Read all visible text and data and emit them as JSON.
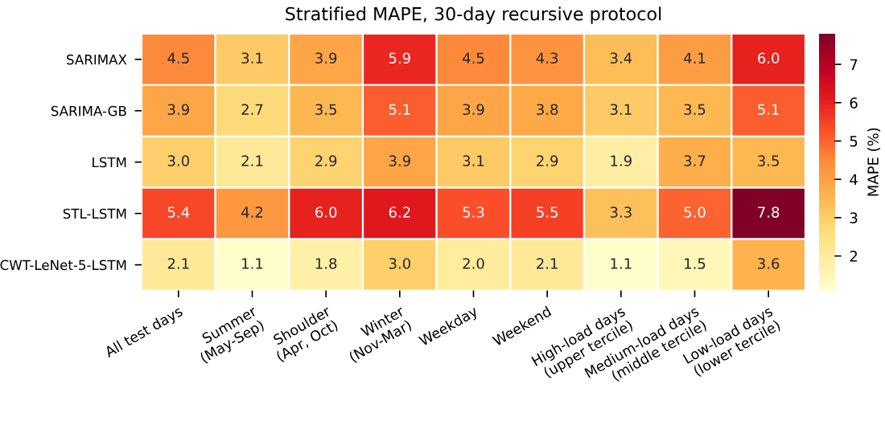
{
  "chart_data": {
    "type": "heatmap",
    "title": "Stratified MAPE, 30-day recursive protocol",
    "clabel": "MAPE (%)",
    "categories": [
      "All test days",
      "Summer\n(May-Sep)",
      "Shoulder\n(Apr, Oct)",
      "Winter\n(Nov-Mar)",
      "Weekday",
      "Weekend",
      "High-load days\n(upper tercile)",
      "Medium-load days\n(middle tercile)",
      "Low-load days\n(lower tercile)"
    ],
    "y_categories": [
      "SARIMAX",
      "SARIMA-GB",
      "LSTM",
      "STL-LSTM",
      "CWT-LeNet-5-LSTM"
    ],
    "cells": [
      [
        4.5,
        3.1,
        3.9,
        5.9,
        4.5,
        4.3,
        3.4,
        4.1,
        6.0
      ],
      [
        3.9,
        2.7,
        3.5,
        5.1,
        3.9,
        3.8,
        3.1,
        3.5,
        5.1
      ],
      [
        3.0,
        2.1,
        2.9,
        3.9,
        3.1,
        2.9,
        1.9,
        3.7,
        3.5
      ],
      [
        5.4,
        4.2,
        6.0,
        6.2,
        5.3,
        5.5,
        3.3,
        5.0,
        7.8
      ],
      [
        2.1,
        1.1,
        1.8,
        3.0,
        2.0,
        2.1,
        1.1,
        1.5,
        3.6
      ]
    ],
    "cell_labels": [
      [
        "4.5",
        "3.1",
        "3.9",
        "5.9",
        "4.5",
        "4.3",
        "3.4",
        "4.1",
        "6.0"
      ],
      [
        "3.9",
        "2.7",
        "3.5",
        "5.1",
        "3.9",
        "3.8",
        "3.1",
        "3.5",
        "5.1"
      ],
      [
        "3.0",
        "2.1",
        "2.9",
        "3.9",
        "3.1",
        "2.9",
        "1.9",
        "3.7",
        "3.5"
      ],
      [
        "5.4",
        "4.2",
        "6.0",
        "6.2",
        "5.3",
        "5.5",
        "3.3",
        "5.0",
        "7.8"
      ],
      [
        "2.1",
        "1.1",
        "1.8",
        "3.0",
        "2.0",
        "2.1",
        "1.1",
        "1.5",
        "3.6"
      ]
    ],
    "clim": [
      1.1,
      7.8
    ],
    "cticks": [
      2,
      3,
      4,
      5,
      6,
      7
    ]
  }
}
